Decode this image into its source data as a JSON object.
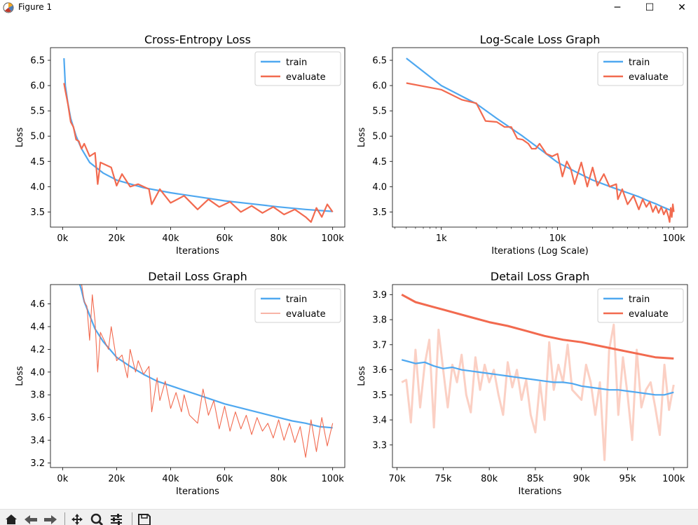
{
  "window": {
    "title": "Figure 1",
    "minimize": "─",
    "maximize": "☐",
    "close": "✕"
  },
  "toolbar": {
    "items": [
      "home",
      "back",
      "forward",
      "pan",
      "zoom",
      "configure",
      "save"
    ]
  },
  "colors": {
    "train": "#4fa8f0",
    "evaluate": "#f26a4f",
    "evaluate_faded": "#fbd0c4"
  },
  "chart_data": [
    {
      "type": "line",
      "title": "Cross-Entropy Loss",
      "xlabel": "Iterations",
      "ylabel": "Loss",
      "xticks": [
        "0k",
        "20k",
        "40k",
        "60k",
        "80k",
        "100k"
      ],
      "yticks": [
        "3.5",
        "4.0",
        "4.5",
        "5.0",
        "5.5",
        "6.0",
        "6.5"
      ],
      "xlim": [
        -4500,
        104500
      ],
      "ylim": [
        3.2,
        6.75
      ],
      "legend": "upper right",
      "series": [
        {
          "name": "train",
          "x": [
            500,
            1000,
            2000,
            3000,
            5000,
            7000,
            10000,
            15000,
            20000,
            30000,
            40000,
            50000,
            60000,
            70000,
            80000,
            90000,
            100000
          ],
          "y": [
            6.54,
            6.0,
            5.64,
            5.35,
            5.0,
            4.75,
            4.48,
            4.27,
            4.13,
            3.98,
            3.88,
            3.8,
            3.72,
            3.66,
            3.6,
            3.55,
            3.51
          ]
        },
        {
          "name": "evaluate",
          "x": [
            500,
            1000,
            2000,
            3000,
            4000,
            5000,
            6000,
            7000,
            8000,
            10000,
            12000,
            13000,
            14000,
            18000,
            20000,
            22000,
            25000,
            28000,
            32000,
            33000,
            36000,
            40000,
            45000,
            50000,
            54000,
            58000,
            62000,
            66000,
            70000,
            74000,
            78000,
            82000,
            86000,
            90000,
            92000,
            94000,
            96000,
            98000,
            100000
          ],
          "y": [
            6.05,
            5.9,
            5.63,
            5.28,
            5.18,
            4.93,
            4.9,
            4.75,
            4.85,
            4.6,
            4.67,
            4.05,
            4.48,
            4.38,
            4.02,
            4.25,
            4.0,
            4.05,
            3.95,
            3.65,
            3.95,
            3.68,
            3.82,
            3.55,
            3.75,
            3.6,
            3.7,
            3.5,
            3.62,
            3.48,
            3.6,
            3.45,
            3.55,
            3.4,
            3.3,
            3.58,
            3.4,
            3.65,
            3.5
          ]
        }
      ]
    },
    {
      "type": "line",
      "title": "Log-Scale Loss Graph",
      "xlabel": "Iterations (Log Scale)",
      "ylabel": "Loss",
      "xscale": "log",
      "xticks": [
        "1k",
        "10k",
        "100k"
      ],
      "yticks": [
        "3.5",
        "4.0",
        "4.5",
        "5.0",
        "5.5",
        "6.0",
        "6.5"
      ],
      "xlim": [
        380,
        131000
      ],
      "ylim": [
        3.2,
        6.75
      ],
      "legend": "upper right",
      "series": [
        {
          "name": "train",
          "x": [
            500,
            1000,
            2000,
            3000,
            5000,
            7000,
            10000,
            15000,
            20000,
            30000,
            40000,
            50000,
            60000,
            70000,
            80000,
            90000,
            100000
          ],
          "y": [
            6.54,
            6.0,
            5.64,
            5.35,
            5.0,
            4.75,
            4.48,
            4.27,
            4.13,
            3.98,
            3.88,
            3.8,
            3.72,
            3.66,
            3.6,
            3.55,
            3.51
          ]
        },
        {
          "name": "evaluate",
          "x": [
            500,
            1000,
            1500,
            2000,
            2400,
            3000,
            3500,
            4000,
            4500,
            5000,
            5600,
            6000,
            6500,
            7000,
            8000,
            9000,
            10000,
            11000,
            12000,
            13000,
            14000,
            16000,
            18000,
            20000,
            22000,
            25000,
            28000,
            32000,
            33000,
            36000,
            40000,
            45000,
            50000,
            54000,
            58000,
            62000,
            66000,
            70000,
            74000,
            78000,
            82000,
            86000,
            90000,
            92000,
            94000,
            96000,
            98000,
            100000
          ],
          "y": [
            6.05,
            5.92,
            5.72,
            5.65,
            5.3,
            5.28,
            5.18,
            5.18,
            4.95,
            4.93,
            4.85,
            4.75,
            4.75,
            4.85,
            4.65,
            4.6,
            4.65,
            4.2,
            4.5,
            4.35,
            4.05,
            4.48,
            4.0,
            4.38,
            4.02,
            4.25,
            4.0,
            4.05,
            3.75,
            3.95,
            3.65,
            3.82,
            3.55,
            3.75,
            3.6,
            3.7,
            3.5,
            3.62,
            3.48,
            3.6,
            3.45,
            3.55,
            3.4,
            3.3,
            3.58,
            3.4,
            3.65,
            3.5
          ]
        }
      ]
    },
    {
      "type": "line",
      "title": "Detail Loss Graph",
      "xlabel": "Iterations",
      "ylabel": "Loss",
      "xticks": [
        "0k",
        "20k",
        "40k",
        "60k",
        "80k",
        "100k"
      ],
      "yticks": [
        "3.2",
        "3.4",
        "3.6",
        "3.8",
        "4.0",
        "4.2",
        "4.4",
        "4.6"
      ],
      "xlim": [
        -4500,
        104500
      ],
      "ylim": [
        3.16,
        4.77
      ],
      "legend": "upper right",
      "series": [
        {
          "name": "train",
          "x": [
            6000,
            7000,
            8000,
            10000,
            12000,
            15000,
            20000,
            25000,
            30000,
            35000,
            40000,
            45000,
            50000,
            55000,
            60000,
            65000,
            70000,
            75000,
            80000,
            85000,
            90000,
            95000,
            100000
          ],
          "y": [
            4.8,
            4.72,
            4.62,
            4.5,
            4.38,
            4.27,
            4.13,
            4.05,
            3.98,
            3.92,
            3.88,
            3.84,
            3.8,
            3.76,
            3.72,
            3.69,
            3.66,
            3.63,
            3.6,
            3.57,
            3.55,
            3.52,
            3.51
          ]
        },
        {
          "name": "evaluate",
          "x": [
            7000,
            8000,
            9000,
            10000,
            11000,
            12000,
            13000,
            14000,
            15000,
            17000,
            18000,
            20000,
            22000,
            24000,
            25000,
            27000,
            28000,
            30000,
            32000,
            33000,
            35000,
            36000,
            38000,
            40000,
            42000,
            44000,
            45000,
            47000,
            50000,
            52000,
            54000,
            56000,
            58000,
            60000,
            62000,
            64000,
            66000,
            68000,
            70000,
            72000,
            74000,
            76000,
            78000,
            80000,
            82000,
            84000,
            86000,
            88000,
            90000,
            92000,
            94000,
            96000,
            98000,
            100000
          ],
          "y": [
            4.78,
            4.62,
            4.58,
            4.28,
            4.68,
            4.45,
            4.0,
            4.35,
            4.3,
            4.2,
            4.4,
            4.1,
            4.15,
            3.95,
            4.2,
            4.0,
            4.1,
            3.98,
            4.05,
            3.65,
            3.95,
            3.75,
            3.92,
            3.68,
            3.82,
            3.65,
            3.8,
            3.62,
            3.55,
            3.85,
            3.62,
            3.75,
            3.5,
            3.7,
            3.48,
            3.65,
            3.5,
            3.62,
            3.45,
            3.6,
            3.48,
            3.55,
            3.42,
            3.58,
            3.4,
            3.55,
            3.38,
            3.52,
            3.25,
            3.58,
            3.3,
            3.6,
            3.35,
            3.55
          ]
        }
      ]
    },
    {
      "type": "line",
      "title": "Detail Loss Graph",
      "xlabel": "Iterations",
      "ylabel": "Loss",
      "xticks": [
        "70k",
        "75k",
        "80k",
        "85k",
        "90k",
        "95k",
        "100k"
      ],
      "yticks": [
        "3.3",
        "3.4",
        "3.5",
        "3.6",
        "3.7",
        "3.8",
        "3.9"
      ],
      "xlim": [
        69500,
        101500
      ],
      "ylim": [
        3.21,
        3.94
      ],
      "legend": "upper right",
      "series": [
        {
          "name": "train",
          "x": [
            70500,
            71000,
            72000,
            73000,
            74000,
            75000,
            76000,
            77000,
            78000,
            79000,
            80000,
            81000,
            82000,
            83000,
            84000,
            85000,
            86000,
            87000,
            88000,
            89000,
            90000,
            91000,
            92000,
            93000,
            94000,
            95000,
            96000,
            97000,
            98000,
            99000,
            100000
          ],
          "y": [
            3.64,
            3.635,
            3.625,
            3.63,
            3.615,
            3.605,
            3.61,
            3.6,
            3.595,
            3.59,
            3.585,
            3.58,
            3.575,
            3.57,
            3.565,
            3.56,
            3.555,
            3.55,
            3.55,
            3.545,
            3.535,
            3.53,
            3.525,
            3.52,
            3.52,
            3.515,
            3.51,
            3.505,
            3.5,
            3.5,
            3.51
          ]
        },
        {
          "name": "evaluate",
          "x": [
            70500,
            72000,
            74000,
            76000,
            78000,
            80000,
            82000,
            84000,
            86000,
            88000,
            90000,
            92000,
            94000,
            96000,
            98000,
            100000
          ],
          "y": [
            3.9,
            3.87,
            3.85,
            3.83,
            3.81,
            3.79,
            3.775,
            3.755,
            3.735,
            3.72,
            3.71,
            3.695,
            3.68,
            3.665,
            3.65,
            3.645
          ]
        },
        {
          "name": "",
          "faded": true,
          "x": [
            70500,
            71000,
            71500,
            72000,
            72500,
            73000,
            73500,
            74000,
            74500,
            75000,
            75500,
            76000,
            76500,
            77000,
            77500,
            78000,
            78500,
            79000,
            79500,
            80000,
            80500,
            81000,
            81500,
            82000,
            82500,
            83000,
            83500,
            84000,
            84500,
            85000,
            85500,
            86000,
            86500,
            87000,
            87500,
            88000,
            88500,
            89000,
            89500,
            90000,
            90500,
            91000,
            91500,
            92000,
            92500,
            93000,
            93500,
            94000,
            94500,
            95000,
            95500,
            96000,
            96500,
            97000,
            97500,
            98000,
            98500,
            99000,
            99500,
            100000
          ],
          "y": [
            3.55,
            3.56,
            3.39,
            3.68,
            3.45,
            3.62,
            3.72,
            3.37,
            3.76,
            3.6,
            3.45,
            3.62,
            3.55,
            3.66,
            3.5,
            3.43,
            3.65,
            3.52,
            3.62,
            3.55,
            3.6,
            3.5,
            3.42,
            3.63,
            3.53,
            3.6,
            3.48,
            3.56,
            3.42,
            3.35,
            3.55,
            3.4,
            3.71,
            3.52,
            3.62,
            3.55,
            3.7,
            3.52,
            3.5,
            3.48,
            3.62,
            3.55,
            3.42,
            3.55,
            3.24,
            3.68,
            3.78,
            3.42,
            3.65,
            3.5,
            3.32,
            3.68,
            3.45,
            3.52,
            3.55,
            3.45,
            3.34,
            3.62,
            3.44,
            3.54
          ]
        }
      ]
    }
  ]
}
